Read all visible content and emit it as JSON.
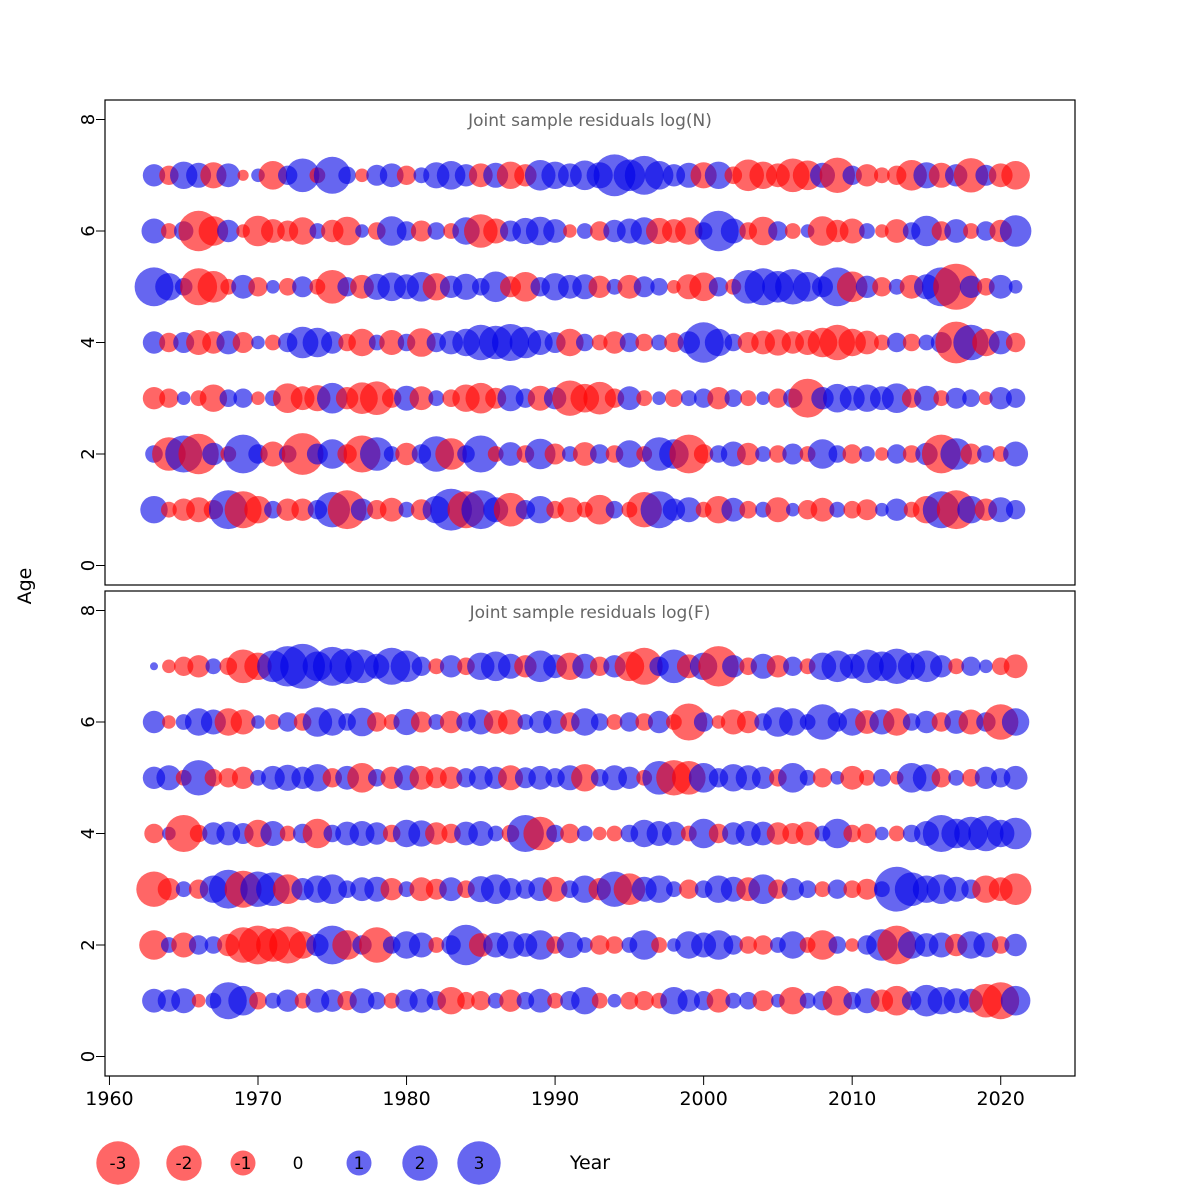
{
  "figure": {
    "ylabel": "Age",
    "xlabel": "Year"
  },
  "chart_data": {
    "type": "bubble",
    "x_axis": {
      "label": "Year",
      "ticks": [
        1960,
        1970,
        1980,
        1990,
        2000,
        2010,
        2020
      ],
      "range": [
        1960,
        2023
      ]
    },
    "y_axis": {
      "label": "Age",
      "ticks": [
        0,
        2,
        4,
        6,
        8
      ],
      "range": [
        0,
        8
      ]
    },
    "grid": "off",
    "colors": {
      "negative": "#ff0000",
      "positive": "#0000e6",
      "opacity": 0.6
    },
    "legend": {
      "position": "bottom-left",
      "values": [
        -3,
        -2,
        -1,
        0,
        1,
        2,
        3
      ],
      "labels": [
        "-3",
        "-2",
        "-1",
        "0",
        "1",
        "2",
        "3"
      ]
    },
    "years": [
      1963,
      1964,
      1965,
      1966,
      1967,
      1968,
      1969,
      1970,
      1971,
      1972,
      1973,
      1974,
      1975,
      1976,
      1977,
      1978,
      1979,
      1980,
      1981,
      1982,
      1983,
      1984,
      1985,
      1986,
      1987,
      1988,
      1989,
      1990,
      1991,
      1992,
      1993,
      1994,
      1995,
      1996,
      1997,
      1998,
      1999,
      2000,
      2001,
      2002,
      2003,
      2004,
      2005,
      2006,
      2007,
      2008,
      2009,
      2010,
      2011,
      2012,
      2013,
      2014,
      2015,
      2016,
      2017,
      2018,
      2019,
      2020,
      2021
    ],
    "panels": [
      {
        "title": "Joint sample residuals log(N)",
        "series": [
          {
            "age": 1,
            "values": [
              1.2,
              -0.4,
              -0.8,
              -1.0,
              -0.6,
              2.4,
              -2.2,
              -1.2,
              0.5,
              -0.8,
              -0.8,
              0.6,
              2.0,
              -2.4,
              0.8,
              -0.6,
              -0.9,
              0.4,
              -0.7,
              1.2,
              2.8,
              -2.2,
              2.4,
              1.0,
              -1.8,
              0.6,
              1.2,
              -0.5,
              -1.0,
              -0.4,
              -1.4,
              0.5,
              -0.4,
              -2.0,
              2.2,
              0.8,
              1.0,
              -0.4,
              -1.2,
              0.9,
              -0.5,
              0.4,
              -1.0,
              0.3,
              -0.6,
              -0.9,
              0.4,
              -0.5,
              -0.7,
              0.3,
              0.8,
              -0.4,
              -1.2,
              2.2,
              -2.4,
              1.2,
              -0.8,
              1.0,
              0.6
            ]
          },
          {
            "age": 2,
            "values": [
              0.5,
              -1.8,
              2.2,
              -2.6,
              0.8,
              -0.4,
              2.4,
              0.6,
              -1.0,
              0.5,
              -2.8,
              0.7,
              1.4,
              -0.6,
              -2.2,
              1.8,
              0.4,
              -0.8,
              0.6,
              2.0,
              -1.6,
              0.5,
              2.2,
              -0.4,
              0.9,
              -0.5,
              1.5,
              -0.7,
              0.4,
              -0.9,
              0.6,
              -0.5,
              1.2,
              -0.4,
              1.8,
              1.4,
              -2.4,
              -0.6,
              0.5,
              1.0,
              -0.8,
              0.4,
              -0.5,
              0.7,
              -0.4,
              1.4,
              0.5,
              -0.6,
              0.4,
              -0.3,
              0.6,
              -0.5,
              0.8,
              -2.4,
              1.6,
              -0.7,
              0.5,
              -0.4,
              1.0
            ]
          },
          {
            "age": 3,
            "values": [
              -0.8,
              -0.6,
              0.3,
              -0.4,
              -1.2,
              0.5,
              0.6,
              -0.3,
              0.4,
              -1.4,
              -0.9,
              -1.1,
              1.5,
              -0.8,
              -1.6,
              -1.8,
              -0.6,
              1.0,
              -0.9,
              0.4,
              -0.5,
              -1.2,
              -1.5,
              -0.7,
              1.1,
              0.6,
              -1.0,
              0.8,
              -2.0,
              -1.3,
              -1.7,
              -0.6,
              0.9,
              -0.4,
              0.3,
              -0.5,
              0.4,
              0.6,
              -0.8,
              0.5,
              -0.4,
              0.3,
              -0.6,
              0.6,
              -2.4,
              0.8,
              1.3,
              1.0,
              1.2,
              0.9,
              1.4,
              -0.6,
              1.0,
              -0.4,
              0.7,
              0.5,
              -0.3,
              0.8,
              0.6
            ]
          },
          {
            "age": 4,
            "values": [
              0.8,
              -0.6,
              0.7,
              -1.0,
              -0.8,
              0.9,
              -0.7,
              0.3,
              -0.4,
              0.6,
              1.6,
              1.4,
              0.8,
              -0.5,
              -1.2,
              0.4,
              -1.0,
              0.5,
              -1.3,
              0.6,
              0.9,
              1.2,
              2.0,
              1.8,
              2.2,
              1.6,
              1.0,
              0.7,
              -1.2,
              0.5,
              -0.4,
              -0.8,
              0.6,
              -0.5,
              0.4,
              -0.6,
              0.8,
              2.6,
              1.2,
              0.5,
              -0.7,
              -0.9,
              -1.1,
              -0.8,
              -1.0,
              -1.4,
              -2.0,
              -1.2,
              -0.9,
              -0.4,
              0.6,
              -0.5,
              0.4,
              0.7,
              -2.8,
              2.0,
              -1.2,
              0.9,
              -0.6
            ]
          },
          {
            "age": 5,
            "values": [
              2.4,
              1.2,
              0.5,
              -2.2,
              -1.6,
              -0.4,
              0.9,
              -0.6,
              0.3,
              -0.5,
              0.7,
              -0.4,
              -1.8,
              0.6,
              -0.9,
              1.1,
              1.3,
              1.0,
              1.4,
              -1.2,
              0.8,
              1.1,
              0.5,
              1.5,
              -0.7,
              -1.4,
              0.6,
              1.2,
              0.9,
              1.0,
              -0.8,
              0.4,
              -0.9,
              0.7,
              0.5,
              -0.3,
              -1.0,
              -1.3,
              0.6,
              -0.4,
              1.8,
              2.2,
              1.6,
              2.0,
              1.4,
              0.7,
              2.4,
              -1.5,
              0.8,
              -0.6,
              0.4,
              -0.9,
              1.0,
              2.4,
              -3.4,
              0.8,
              -0.5,
              0.9,
              0.3
            ]
          },
          {
            "age": 6,
            "values": [
              1.0,
              -0.4,
              0.6,
              -2.6,
              -1.4,
              0.8,
              -0.3,
              -1.5,
              -0.9,
              -0.7,
              -1.2,
              0.4,
              -0.8,
              -1.3,
              0.3,
              -0.5,
              1.4,
              0.6,
              -0.7,
              0.5,
              -0.4,
              1.2,
              -1.8,
              -1.0,
              0.7,
              1.1,
              1.3,
              0.9,
              -0.3,
              0.4,
              -0.6,
              0.8,
              1.0,
              1.2,
              -1.1,
              -0.9,
              -1.2,
              0.5,
              2.6,
              1.0,
              -0.5,
              -1.3,
              0.6,
              -0.4,
              0.3,
              -1.4,
              -0.8,
              -1.0,
              0.4,
              -0.3,
              -0.9,
              0.5,
              1.5,
              -0.6,
              0.9,
              -0.4,
              0.6,
              -0.8,
              1.6
            ]
          },
          {
            "age": 7,
            "values": [
              0.8,
              -0.6,
              1.2,
              1.0,
              -1.1,
              0.9,
              -0.2,
              0.3,
              -1.3,
              0.6,
              1.8,
              -0.4,
              2.2,
              0.5,
              -0.3,
              0.7,
              0.9,
              -0.6,
              0.4,
              1.1,
              1.3,
              0.8,
              -0.9,
              1.0,
              -1.2,
              -0.8,
              1.5,
              1.2,
              0.9,
              1.4,
              1.1,
              2.8,
              1.6,
              2.4,
              1.3,
              0.8,
              1.0,
              -1.1,
              1.2,
              -0.5,
              -1.6,
              -1.2,
              -0.9,
              -1.8,
              -1.4,
              1.0,
              -2.0,
              0.6,
              -0.8,
              -0.4,
              -0.6,
              -1.5,
              1.1,
              -1.0,
              0.8,
              -1.9,
              0.7,
              -0.9,
              -1.3
            ]
          }
        ]
      },
      {
        "title": "Joint sample residuals log(F)",
        "series": [
          {
            "age": 1,
            "values": [
              0.9,
              0.8,
              1.0,
              -0.3,
              0.4,
              2.2,
              1.4,
              -0.5,
              0.4,
              0.8,
              -0.4,
              0.9,
              0.8,
              -0.6,
              1.0,
              0.5,
              -0.4,
              0.8,
              0.9,
              0.6,
              -1.2,
              -0.5,
              -0.6,
              0.4,
              -0.8,
              0.5,
              0.9,
              -0.4,
              0.6,
              1.2,
              -0.4,
              0.3,
              -0.5,
              -0.6,
              -0.4,
              1.2,
              0.8,
              0.6,
              -0.9,
              0.4,
              0.5,
              -0.7,
              0.3,
              -1.2,
              0.4,
              0.6,
              -1.4,
              0.5,
              1.0,
              -0.8,
              -1.4,
              0.6,
              1.6,
              1.2,
              1.0,
              0.9,
              -1.8,
              -2.2,
              1.4
            ]
          },
          {
            "age": 2,
            "values": [
              -1.4,
              0.4,
              -1.0,
              0.6,
              0.5,
              -0.8,
              -2.0,
              -2.4,
              -1.8,
              -2.2,
              -1.2,
              0.8,
              2.4,
              -1.4,
              0.6,
              -2.0,
              0.5,
              1.2,
              1.0,
              -0.4,
              0.6,
              2.6,
              -0.9,
              1.0,
              1.2,
              0.9,
              1.4,
              -0.5,
              1.1,
              0.4,
              -0.6,
              -0.5,
              0.4,
              1.4,
              -0.4,
              0.3,
              1.2,
              1.0,
              1.4,
              0.6,
              -0.5,
              -0.6,
              0.4,
              1.2,
              -0.4,
              -1.4,
              0.5,
              -0.3,
              0.6,
              1.6,
              -2.4,
              1.2,
              0.9,
              1.0,
              -0.8,
              1.2,
              1.0,
              -0.5,
              0.8
            ]
          },
          {
            "age": 3,
            "values": [
              -2.0,
              -0.8,
              0.4,
              -0.6,
              1.2,
              2.4,
              -2.2,
              2.0,
              1.8,
              -1.4,
              0.8,
              1.2,
              1.4,
              0.5,
              0.9,
              1.0,
              -0.8,
              0.4,
              -0.9,
              -0.7,
              0.9,
              -0.5,
              1.1,
              1.4,
              0.8,
              0.6,
              0.9,
              -1.0,
              0.5,
              1.2,
              -0.8,
              2.0,
              -1.6,
              1.0,
              1.2,
              0.4,
              -0.6,
              0.5,
              1.2,
              1.0,
              -0.9,
              1.4,
              -0.6,
              0.8,
              0.5,
              -0.4,
              0.6,
              -0.5,
              -0.7,
              0.4,
              3.2,
              1.8,
              1.2,
              1.4,
              1.0,
              0.6,
              -1.2,
              -0.9,
              -1.6
            ]
          },
          {
            "age": 4,
            "values": [
              -0.6,
              0.3,
              -2.2,
              -0.5,
              0.8,
              0.9,
              0.7,
              -1.2,
              1.0,
              -0.4,
              0.6,
              -1.4,
              0.5,
              0.9,
              1.0,
              0.8,
              -0.5,
              1.2,
              1.1,
              -0.8,
              -0.6,
              0.9,
              1.0,
              0.4,
              -0.5,
              2.2,
              -1.8,
              0.5,
              -0.6,
              0.4,
              -0.3,
              -0.4,
              0.5,
              1.2,
              1.0,
              0.9,
              -0.4,
              1.4,
              -0.6,
              0.8,
              1.0,
              0.9,
              -0.8,
              -0.7,
              -0.9,
              0.4,
              1.4,
              -0.5,
              -0.6,
              0.3,
              -0.4,
              0.5,
              1.0,
              2.2,
              1.4,
              1.8,
              2.0,
              1.2,
              1.6
            ]
          },
          {
            "age": 5,
            "values": [
              0.8,
              1.0,
              -0.4,
              2.0,
              -0.5,
              -0.6,
              -0.8,
              0.4,
              0.9,
              1.1,
              0.8,
              1.2,
              -0.6,
              0.9,
              -1.4,
              0.5,
              -0.8,
              1.0,
              -0.9,
              -0.7,
              -0.8,
              0.6,
              0.9,
              0.8,
              -1.0,
              0.7,
              0.9,
              0.6,
              1.0,
              -1.2,
              0.5,
              1.0,
              0.8,
              -0.4,
              1.8,
              -2.0,
              -1.8,
              1.4,
              0.6,
              1.2,
              1.0,
              0.8,
              -0.5,
              1.4,
              0.4,
              -0.6,
              0.3,
              -0.9,
              -0.4,
              0.5,
              -0.3,
              1.4,
              1.2,
              -0.6,
              0.4,
              -0.5,
              0.8,
              0.6,
              0.9
            ]
          },
          {
            "age": 6,
            "values": [
              0.8,
              -0.3,
              0.4,
              1.2,
              1.0,
              -1.2,
              -1.0,
              0.3,
              -0.4,
              0.6,
              -0.5,
              1.4,
              1.2,
              0.5,
              1.3,
              -0.6,
              -0.4,
              1.1,
              -0.7,
              0.4,
              -0.8,
              0.6,
              1.0,
              -0.9,
              -1.0,
              0.4,
              0.8,
              0.9,
              -0.6,
              1.2,
              0.5,
              -0.4,
              0.6,
              -0.5,
              0.8,
              -0.4,
              -2.2,
              0.6,
              -0.3,
              -1.0,
              -0.8,
              0.5,
              1.4,
              1.2,
              0.4,
              2.0,
              0.6,
              1.2,
              -0.9,
              1.0,
              -1.2,
              0.5,
              0.8,
              -0.6,
              0.9,
              -1.0,
              0.6,
              -2.0,
              1.2
            ]
          },
          {
            "age": 7,
            "values": [
              0.1,
              -0.3,
              -0.6,
              -0.8,
              0.4,
              -0.5,
              -1.8,
              -1.2,
              1.6,
              2.6,
              3.2,
              1.4,
              2.4,
              2.0,
              1.8,
              1.0,
              2.2,
              1.6,
              0.6,
              -0.4,
              0.8,
              -0.5,
              1.2,
              1.4,
              1.0,
              -0.8,
              1.6,
              0.9,
              -1.2,
              1.0,
              -0.6,
              0.8,
              -1.4,
              -2.2,
              0.6,
              1.8,
              -0.9,
              1.2,
              -2.6,
              0.8,
              -0.5,
              1.0,
              -0.8,
              0.6,
              -0.4,
              1.2,
              1.6,
              1.0,
              1.8,
              1.4,
              2.0,
              1.2,
              1.6,
              0.8,
              -0.4,
              0.6,
              0.3,
              -0.5,
              -0.9
            ]
          }
        ]
      }
    ]
  }
}
